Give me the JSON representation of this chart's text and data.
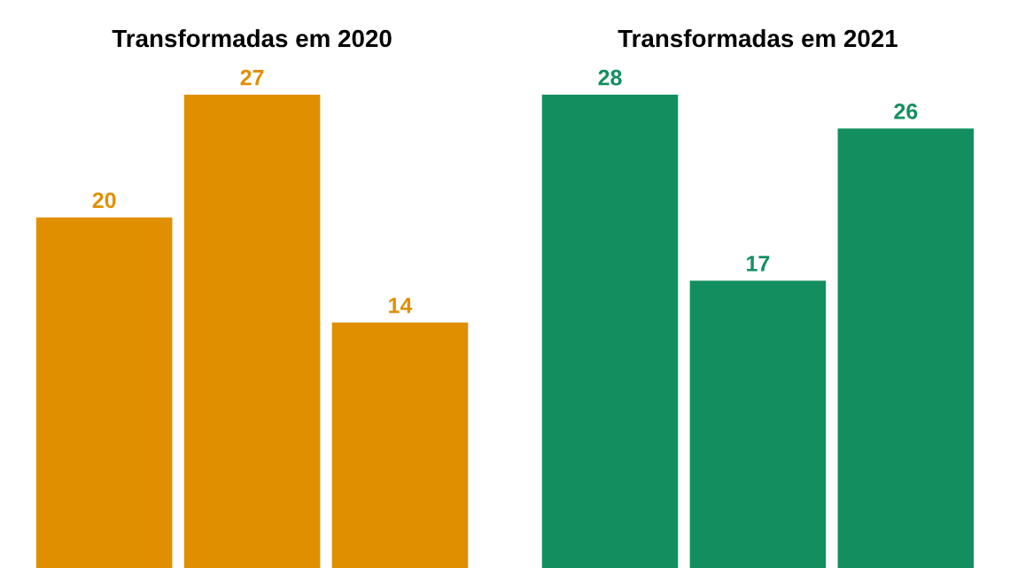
{
  "chart_data": [
    {
      "type": "bar",
      "title": "Transformadas em 2020",
      "categories": [
        null,
        null,
        null
      ],
      "values": [
        20,
        27,
        14
      ],
      "color": "#e08f00",
      "data_labels": true
    },
    {
      "type": "bar",
      "title": "Transformadas em 2021",
      "categories": [
        null,
        null,
        null
      ],
      "values": [
        28,
        17,
        26
      ],
      "color": "#138f5f",
      "data_labels": true
    }
  ]
}
